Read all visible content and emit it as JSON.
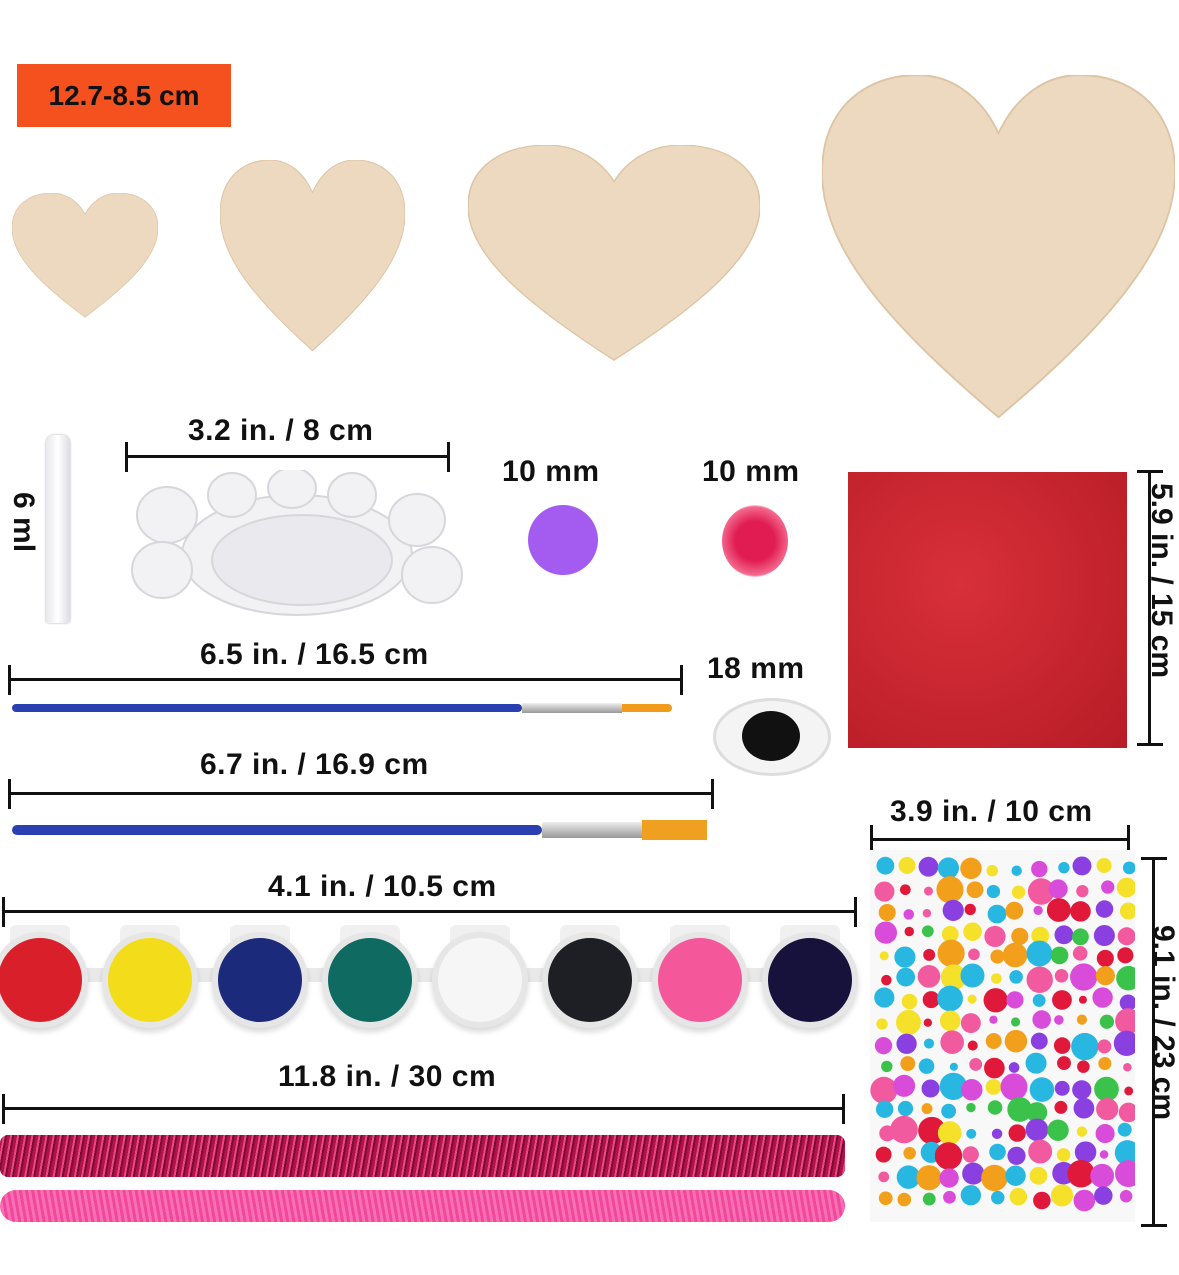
{
  "badge": {
    "text": "12.7-8.5 cm",
    "color": "#f4511e"
  },
  "labels": {
    "bottle": "6 ml",
    "palette": "3.2 in. / 8 cm",
    "pompom_purple": "10 mm",
    "pompom_glitter": "10 mm",
    "glitter_paper": "5.9 in. / 15 cm",
    "brush_small": "6.5 in. / 16.5 cm",
    "googly_eye": "18 mm",
    "brush_large": "6.7 in. / 16.9 cm",
    "gem_sheet_width": "3.9 in. / 10 cm",
    "paint_strip": "4.1 in. / 10.5 cm",
    "gem_sheet_height": "9.1 in. / 23 cm",
    "pipe_cleaners": "11.8 in. / 30 cm"
  },
  "paint_colors": [
    "#d9202a",
    "#f3dc1a",
    "#1b2a7a",
    "#0f6b62",
    "#f6f6f6",
    "#1e1f24",
    "#f4579a",
    "#17123c"
  ],
  "colors": {
    "wood": "#ecd9bf",
    "glitter_paper": "#c4222b",
    "brush_handle": "#2a3fb0",
    "pom_purple": "#a45cf0",
    "pom_glitter": "#d8194b",
    "pipe_dark": "#b2124a",
    "pipe_pink": "#f2479a"
  }
}
